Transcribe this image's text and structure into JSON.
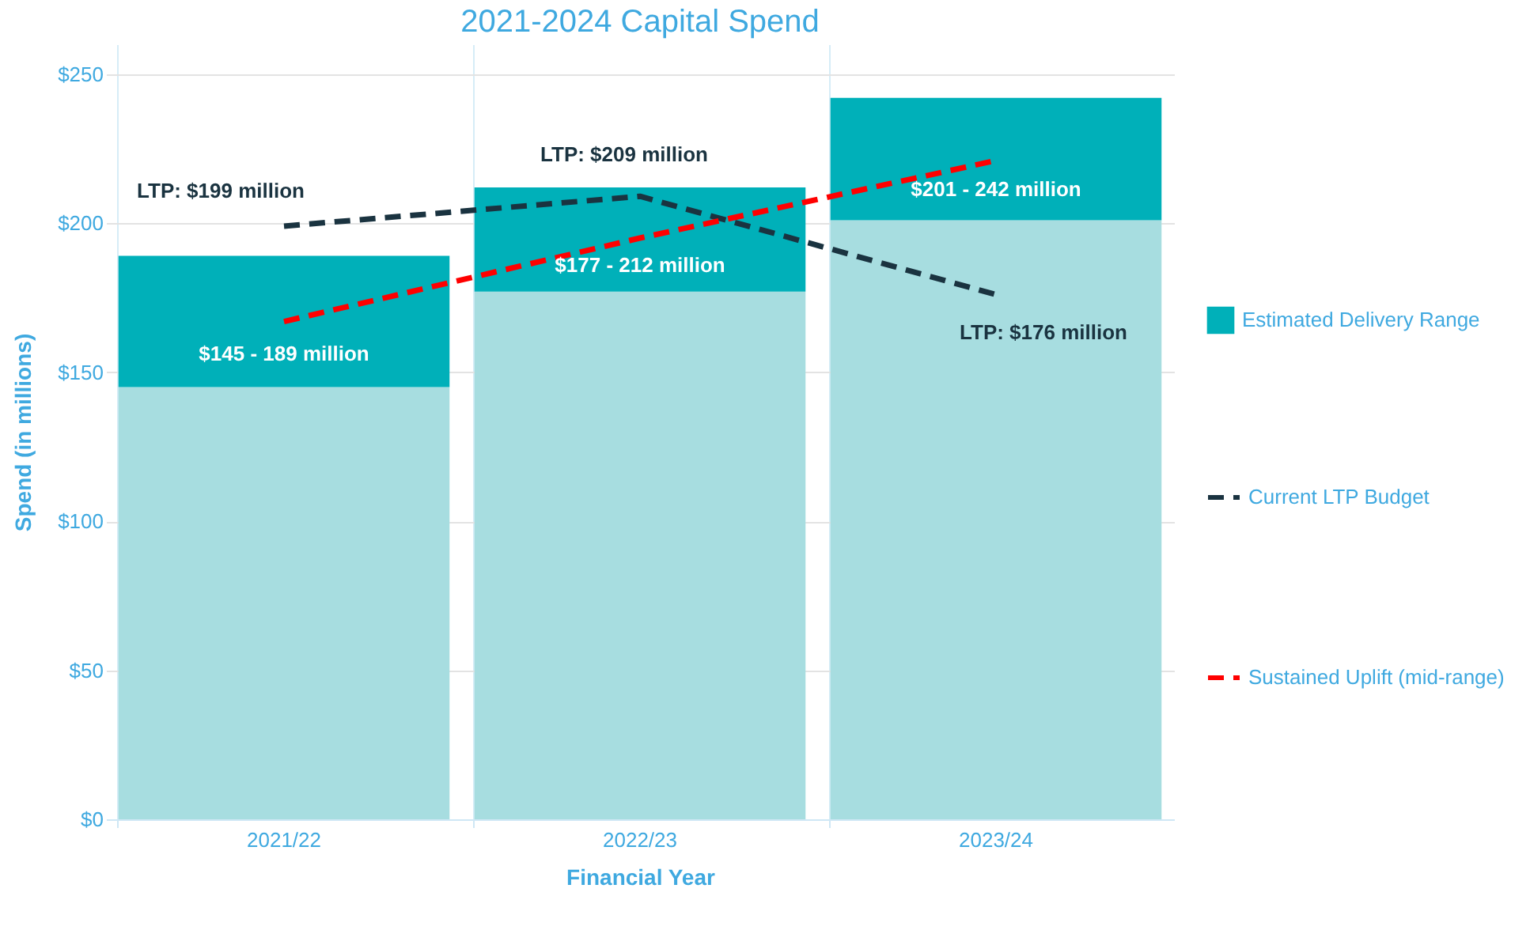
{
  "chart_data": {
    "type": "bar",
    "title": "2021-2024 Capital Spend",
    "xlabel": "Financial Year",
    "ylabel": "Spend (in millions)",
    "categories": [
      "2021/22",
      "2022/23",
      "2023/24"
    ],
    "stacked": true,
    "series": [
      {
        "color": "#a7dde0",
        "values": [
          145,
          177,
          201
        ]
      },
      {
        "name": "Estimated Delivery Range",
        "color": "#00b0b9",
        "values": [
          44,
          35,
          41
        ]
      },
      {
        "type": "line",
        "name": "Current LTP Budget",
        "color": "#1a3340",
        "line_style": "dashed",
        "values": [
          199,
          209,
          176
        ]
      },
      {
        "type": "line",
        "name": "Sustained Uplift (mid-range)",
        "color": "#ff0000",
        "line_style": "dashed",
        "values": [
          167,
          195,
          221
        ]
      }
    ],
    "annotations": [
      {
        "text": "LTP: $199 million",
        "x": "2021/22",
        "y": 199
      },
      {
        "text": "LTP: $209 million",
        "x": "2022/23",
        "y": 209
      },
      {
        "text": "LTP: $176 million",
        "x": "2023/24",
        "y": 176
      },
      "$145 - 189 million",
      "$177 - 212 million",
      "$201 - 242 million"
    ],
    "ylim": [
      0,
      260
    ],
    "yticks": [
      {
        "value": 0,
        "label": "$0"
      },
      {
        "value": 50,
        "label": "$50"
      },
      {
        "value": 100,
        "label": "$100"
      },
      {
        "value": 150,
        "label": "$150"
      },
      {
        "value": 200,
        "label": "$200"
      },
      {
        "value": 250,
        "label": "$250"
      }
    ],
    "grid": true,
    "legend": "right"
  }
}
